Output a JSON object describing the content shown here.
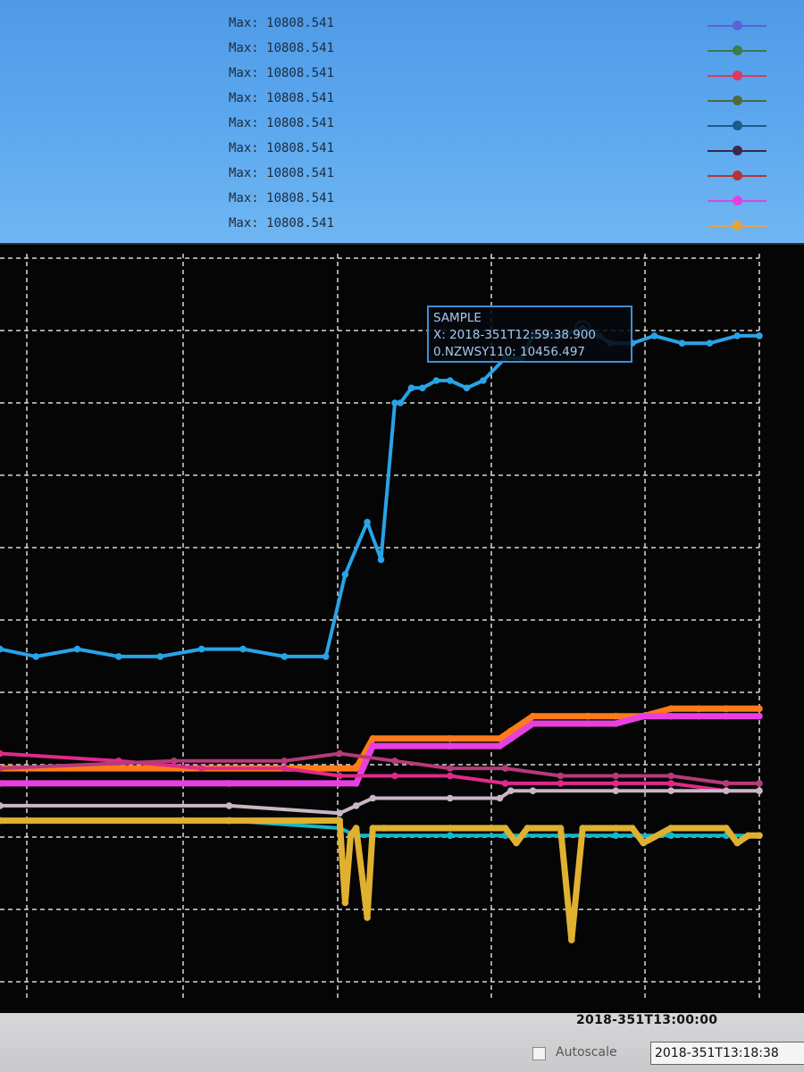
{
  "legend": [
    {
      "text": "Max: 10808.541",
      "color": "#5b63d6"
    },
    {
      "text": "Max: 10808.541",
      "color": "#3e7a4a"
    },
    {
      "text": "Max: 10808.541",
      "color": "#e0395a"
    },
    {
      "text": "Max: 10808.541",
      "color": "#4d6b3e"
    },
    {
      "text": "Max: 10808.541",
      "color": "#1e5a8a"
    },
    {
      "text": "Max: 10808.541",
      "color": "#3a2a4a"
    },
    {
      "text": "Max: 10808.541",
      "color": "#b83232"
    },
    {
      "text": "Max: 10808.541",
      "color": "#e044e0"
    },
    {
      "text": "Max: 10808.541",
      "color": "#e8a23a"
    }
  ],
  "tooltip": {
    "title": "SAMPLE",
    "x_line": "X: 2018-351T12:59:38.900",
    "y_line": "0.NZWSY110: 10456.497"
  },
  "bottom": {
    "x_tick": "2018-351T13:00:00",
    "autoscale_label": "Autoscale",
    "time_field": "2018-351T13:18:38"
  },
  "chart_data": {
    "type": "line",
    "x_unit": "seconds relative to 2018-351T13:00:00",
    "x_range": [
      -2230,
      520
    ],
    "y_range": [
      0,
      100
    ],
    "x_tick_label": "2018-351T13:00:00",
    "series": [
      {
        "color": "#29a3e8",
        "x": [
          -2230,
          -2100,
          -1950,
          -1800,
          -1650,
          -1500,
          -1350,
          -1200,
          -1050,
          -980,
          -900,
          -850,
          -800,
          -780,
          -740,
          -700,
          -650,
          -600,
          -540,
          -480,
          -400,
          -340,
          -300,
          -260,
          -200,
          -120,
          -60,
          -20,
          60,
          140,
          240,
          340,
          440,
          520
        ],
        "values": [
          47,
          46,
          47,
          46,
          46,
          47,
          47,
          46,
          46,
          57,
          64,
          59,
          80,
          80,
          82,
          82,
          83,
          83,
          82,
          83,
          86,
          86,
          89,
          89,
          89,
          90,
          89,
          88,
          88,
          89,
          88,
          88,
          89,
          89
        ]
      },
      {
        "color": "#ff7a1a",
        "x": [
          -2230,
          -1000,
          -940,
          -880,
          -600,
          -420,
          -380,
          -300,
          -100,
          0,
          100,
          200,
          300,
          400,
          520
        ],
        "values": [
          31,
          31,
          31,
          35,
          35,
          35,
          36,
          38,
          38,
          38,
          38,
          39,
          39,
          39,
          39
        ]
      },
      {
        "color": "#e840e0",
        "x": [
          -2230,
          -1400,
          -1000,
          -940,
          -880,
          -600,
          -420,
          -380,
          -300,
          -100,
          0,
          100,
          200,
          300,
          400,
          520
        ],
        "values": [
          29,
          29,
          29,
          29,
          34,
          34,
          34,
          35,
          37,
          37,
          37,
          38,
          38,
          38,
          38,
          38
        ]
      },
      {
        "color": "#e02a8a",
        "x": [
          -2230,
          -1800,
          -1500,
          -1200,
          -1000,
          -800,
          -600,
          -400,
          -200,
          0,
          200,
          400,
          520
        ],
        "values": [
          33,
          32,
          31,
          31,
          30,
          30,
          30,
          29,
          29,
          29,
          29,
          28,
          28
        ]
      },
      {
        "color": "#b73a7a",
        "x": [
          -2230,
          -1600,
          -1200,
          -1000,
          -800,
          -600,
          -400,
          -200,
          0,
          200,
          400,
          520
        ],
        "values": [
          31,
          32,
          32,
          33,
          32,
          31,
          31,
          30,
          30,
          30,
          29,
          29
        ]
      },
      {
        "color": "#c9b7c6",
        "x": [
          -2230,
          -1400,
          -1000,
          -940,
          -880,
          -600,
          -420,
          -380,
          -300,
          0,
          200,
          400,
          520
        ],
        "values": [
          26,
          26,
          25,
          26,
          27,
          27,
          27,
          28,
          28,
          28,
          28,
          28,
          28
        ]
      },
      {
        "color": "#13b8c8",
        "x": [
          -2230,
          -1400,
          -1000,
          -940,
          -880,
          -600,
          -400,
          -200,
          0,
          200,
          400,
          520
        ],
        "values": [
          24,
          24,
          23,
          22,
          22,
          22,
          22,
          22,
          22,
          22,
          22,
          22
        ]
      },
      {
        "color": "#e0b030",
        "x": [
          -2230,
          -1400,
          -1000,
          -980,
          -960,
          -940,
          -900,
          -880,
          -840,
          -600,
          -400,
          -360,
          -320,
          -200,
          -160,
          -120,
          0,
          60,
          100,
          200,
          400,
          440,
          480,
          520
        ],
        "values": [
          24,
          24,
          24,
          13,
          22,
          23,
          11,
          23,
          23,
          23,
          23,
          21,
          23,
          23,
          8,
          23,
          23,
          23,
          21,
          23,
          23,
          21,
          22,
          22
        ]
      }
    ]
  }
}
